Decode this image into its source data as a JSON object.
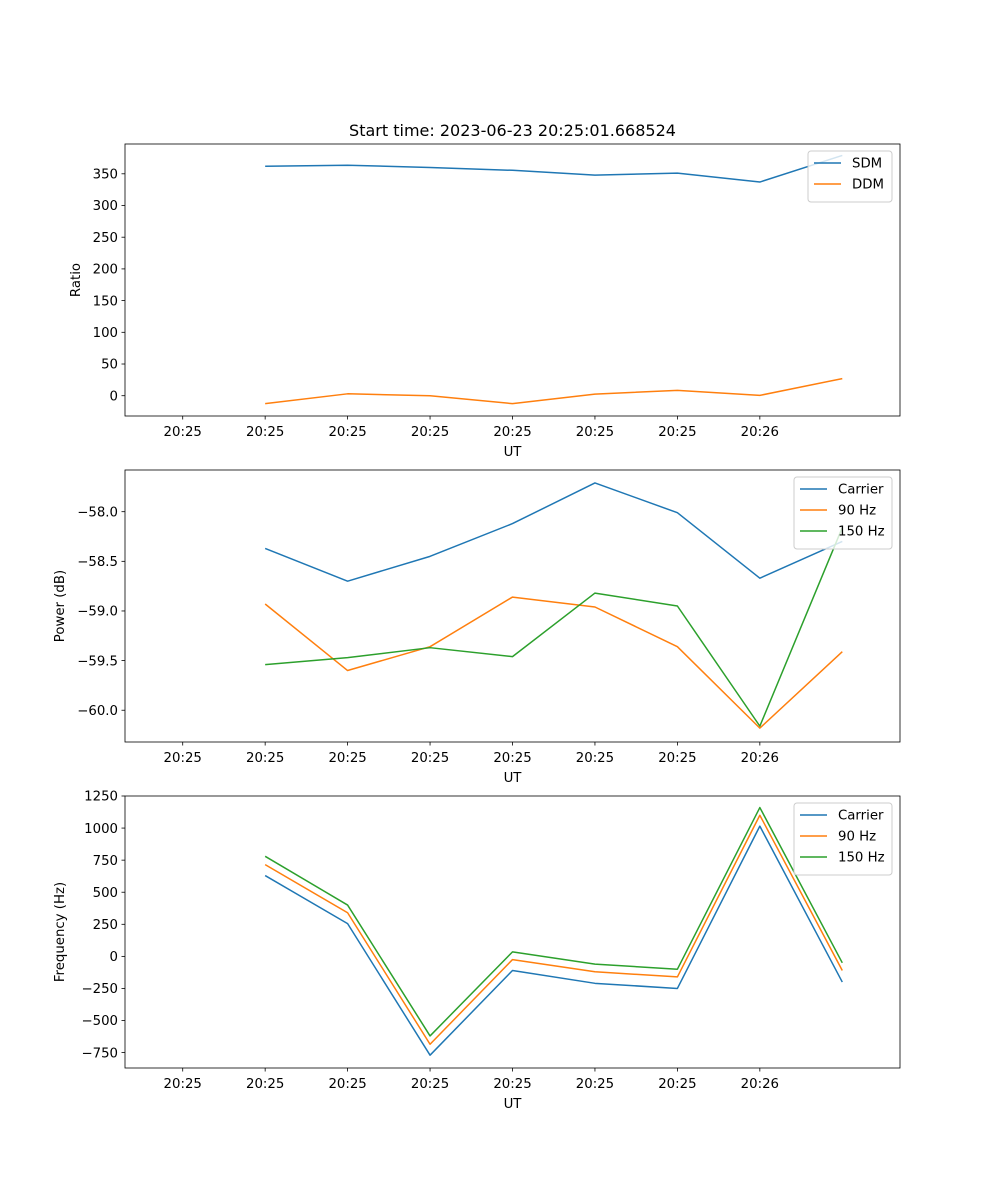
{
  "colors": {
    "c0": "#1f77b4",
    "c1": "#ff7f0e",
    "c2": "#2ca02c"
  },
  "chart_data": [
    {
      "type": "line",
      "title": "Start time: 2023-06-23 20:25:01.668524",
      "xlabel": "UT",
      "ylabel": "Ratio",
      "x_tick_labels": [
        "20:25",
        "20:25",
        "20:25",
        "20:25",
        "20:25",
        "20:25",
        "20:25",
        "20:26"
      ],
      "xlim": [
        -0.7,
        8.7
      ],
      "ylim": [
        -32,
        397
      ],
      "y_ticks": [
        0,
        50,
        100,
        150,
        200,
        250,
        300,
        350
      ],
      "legend_position": "top-right",
      "x": [
        1,
        2,
        3,
        4,
        5,
        6,
        7,
        8
      ],
      "series": [
        {
          "name": "SDM",
          "color": "#1f77b4",
          "values": [
            362,
            363.5,
            360,
            355.5,
            348,
            351,
            337,
            379
          ]
        },
        {
          "name": "DDM",
          "color": "#ff7f0e",
          "values": [
            -12.5,
            3,
            0,
            -12.5,
            2.5,
            8.5,
            0.5,
            27
          ]
        }
      ]
    },
    {
      "type": "line",
      "title": "",
      "xlabel": "UT",
      "ylabel": "Power (dB)",
      "x_tick_labels": [
        "20:25",
        "20:25",
        "20:25",
        "20:25",
        "20:25",
        "20:25",
        "20:25",
        "20:26"
      ],
      "xlim": [
        -0.7,
        8.7
      ],
      "ylim": [
        -60.32,
        -57.58
      ],
      "y_ticks": [
        -60.0,
        -59.5,
        -59.0,
        -58.5,
        -58.0
      ],
      "y_tick_labels": [
        "−60.0",
        "−59.5",
        "−59.0",
        "−58.5",
        "−58.0"
      ],
      "legend_position": "top-right",
      "x": [
        1,
        2,
        3,
        4,
        5,
        6,
        7,
        8
      ],
      "series": [
        {
          "name": "Carrier",
          "color": "#1f77b4",
          "values": [
            -58.37,
            -58.7,
            -58.45,
            -58.12,
            -57.71,
            -58.01,
            -58.67,
            -58.3
          ]
        },
        {
          "name": "90 Hz",
          "color": "#ff7f0e",
          "values": [
            -58.93,
            -59.6,
            -59.36,
            -58.86,
            -58.96,
            -59.36,
            -60.18,
            -59.41
          ]
        },
        {
          "name": "150 Hz",
          "color": "#2ca02c",
          "values": [
            -59.54,
            -59.47,
            -59.37,
            -59.46,
            -58.82,
            -58.95,
            -60.16,
            -58.16
          ]
        }
      ]
    },
    {
      "type": "line",
      "title": "",
      "xlabel": "UT",
      "ylabel": "Frequency (Hz)",
      "x_tick_labels": [
        "20:25",
        "20:25",
        "20:25",
        "20:25",
        "20:25",
        "20:25",
        "20:25",
        "20:26"
      ],
      "xlim": [
        -0.7,
        8.7
      ],
      "ylim": [
        -870,
        1250
      ],
      "y_ticks": [
        -750,
        -500,
        -250,
        0,
        250,
        500,
        750,
        1000,
        1250
      ],
      "y_tick_labels": [
        "−750",
        "−500",
        "−250",
        "0",
        "250",
        "500",
        "750",
        "1000",
        "1250"
      ],
      "legend_position": "top-right",
      "x": [
        1,
        2,
        3,
        4,
        5,
        6,
        7,
        8
      ],
      "series": [
        {
          "name": "Carrier",
          "color": "#1f77b4",
          "values": [
            630,
            255,
            -770,
            -110,
            -210,
            -250,
            1015,
            -200
          ]
        },
        {
          "name": "90 Hz",
          "color": "#ff7f0e",
          "values": [
            715,
            340,
            -685,
            -25,
            -120,
            -160,
            1100,
            -110
          ]
        },
        {
          "name": "150 Hz",
          "color": "#2ca02c",
          "values": [
            780,
            400,
            -620,
            35,
            -60,
            -100,
            1160,
            -50
          ]
        }
      ]
    }
  ]
}
